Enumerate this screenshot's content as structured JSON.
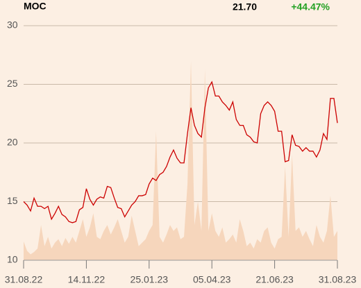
{
  "chart_data": {
    "type": "line",
    "header": {
      "symbol": "MOC",
      "price": "21.70",
      "change": "+44.47%"
    },
    "categories": [
      "31.08.22",
      null,
      null,
      null,
      null,
      null,
      null,
      null,
      null,
      null,
      null,
      null,
      null,
      null,
      null,
      null,
      null,
      null,
      "14.11.22",
      null,
      null,
      null,
      null,
      null,
      null,
      null,
      null,
      null,
      null,
      null,
      null,
      null,
      null,
      null,
      null,
      null,
      "25.01.23",
      null,
      null,
      null,
      null,
      null,
      null,
      null,
      null,
      null,
      null,
      null,
      null,
      null,
      null,
      null,
      null,
      null,
      "05.04.23",
      null,
      null,
      null,
      null,
      null,
      null,
      null,
      null,
      null,
      null,
      null,
      null,
      null,
      null,
      null,
      null,
      null,
      "21.06.23",
      null,
      null,
      null,
      null,
      null,
      null,
      null,
      null,
      null,
      null,
      null,
      null,
      null,
      null,
      null,
      null,
      null,
      "31.08.23"
    ],
    "series": [
      {
        "type": "line",
        "color": "#cc0000",
        "values": [
          15.0,
          14.7,
          14.2,
          15.3,
          14.6,
          14.6,
          14.4,
          14.6,
          13.5,
          14.0,
          14.6,
          13.9,
          13.7,
          13.3,
          13.2,
          13.3,
          14.3,
          14.5,
          16.1,
          15.2,
          14.7,
          15.2,
          15.4,
          15.3,
          16.3,
          16.2,
          15.3,
          14.5,
          14.4,
          13.7,
          14.2,
          14.7,
          15.0,
          15.5,
          15.5,
          15.6,
          16.5,
          17.0,
          16.8,
          17.3,
          17.5,
          18.0,
          18.8,
          19.4,
          18.7,
          18.3,
          18.3,
          20.8,
          23.0,
          21.5,
          20.8,
          20.5,
          23.0,
          24.7,
          25.2,
          24.0,
          24.0,
          23.5,
          23.2,
          22.8,
          23.5,
          22.0,
          21.5,
          21.5,
          20.7,
          20.5,
          20.1,
          20.0,
          22.5,
          23.2,
          23.5,
          23.2,
          22.7,
          21.0,
          21.0,
          18.4,
          18.5,
          20.7,
          19.8,
          19.7,
          19.3,
          19.6,
          19.3,
          19.3,
          18.8,
          19.4,
          20.8,
          20.3,
          23.8,
          23.8,
          21.7
        ]
      },
      {
        "type": "area",
        "color": "#f6d6bc",
        "values": [
          11.6,
          10.8,
          10.5,
          10.7,
          11.0,
          13.0,
          11.2,
          12.0,
          11.0,
          11.5,
          11.8,
          11.2,
          11.9,
          11.4,
          12.0,
          11.5,
          12.5,
          13.5,
          12.0,
          12.8,
          14.0,
          12.0,
          11.8,
          12.5,
          13.0,
          12.2,
          12.8,
          13.5,
          12.5,
          11.5,
          12.0,
          13.8,
          12.5,
          11.2,
          11.5,
          11.8,
          12.5,
          13.0,
          21.0,
          12.0,
          11.5,
          12.2,
          13.0,
          12.5,
          12.8,
          11.8,
          12.0,
          16.5,
          27.0,
          13.0,
          15.0,
          12.5,
          26.3,
          12.5,
          14.0,
          12.5,
          12.0,
          12.8,
          11.5,
          11.8,
          12.2,
          11.5,
          13.5,
          12.5,
          11.2,
          11.5,
          11.0,
          11.8,
          11.5,
          12.5,
          12.8,
          11.5,
          11.0,
          11.8,
          12.0,
          18.0,
          12.0,
          19.0,
          12.5,
          12.8,
          12.0,
          12.5,
          11.8,
          11.2,
          13.0,
          12.0,
          11.5,
          12.5,
          15.5,
          12.0,
          12.5
        ]
      }
    ],
    "ylim": [
      10,
      30
    ],
    "yticks": [
      10,
      15,
      20,
      25,
      30
    ],
    "grid": true
  }
}
